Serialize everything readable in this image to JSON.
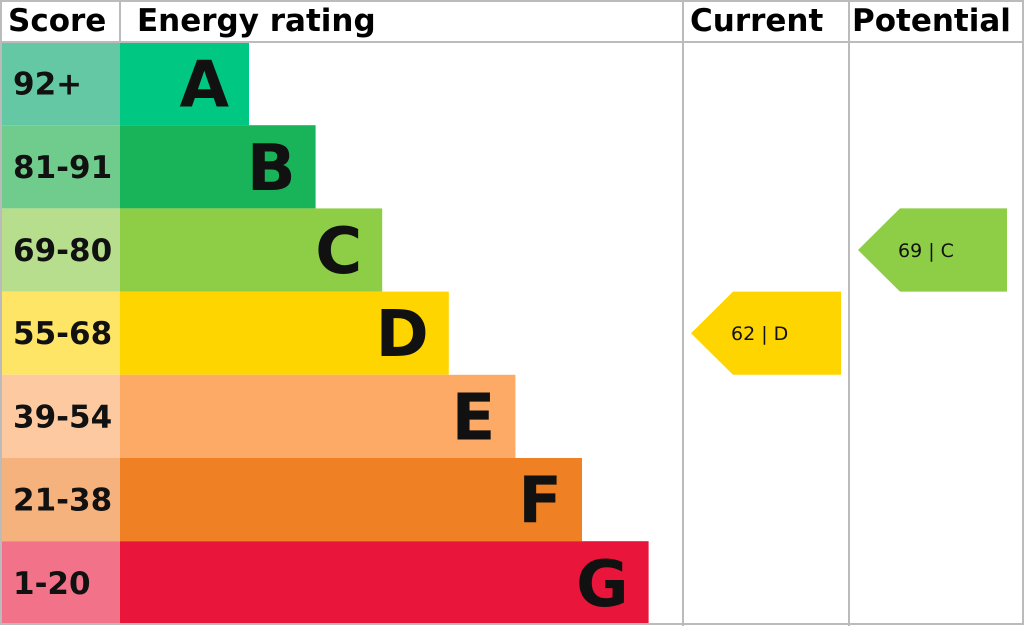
{
  "chart_data": {
    "type": "bar",
    "headers": {
      "score": "Score",
      "rating": "Energy rating",
      "current": "Current",
      "potential": "Potential"
    },
    "bands": [
      {
        "letter": "A",
        "range": "92+",
        "color": "#00c781",
        "light": "#64c8a4"
      },
      {
        "letter": "B",
        "range": "81-91",
        "color": "#19b459",
        "light": "#70cc8d"
      },
      {
        "letter": "C",
        "range": "69-80",
        "color": "#8dce46",
        "light": "#b6de8c"
      },
      {
        "letter": "D",
        "range": "55-68",
        "color": "#ffd500",
        "light": "#ffe566"
      },
      {
        "letter": "E",
        "range": "39-54",
        "color": "#fcaa65",
        "light": "#fdc9a0"
      },
      {
        "letter": "F",
        "range": "21-38",
        "color": "#ef8023",
        "light": "#f5b27d"
      },
      {
        "letter": "G",
        "range": "1-20",
        "color": "#e9153b",
        "light": "#f27389"
      }
    ],
    "current": {
      "value": 62,
      "band": "D",
      "label": "62 | D"
    },
    "potential": {
      "value": 69,
      "band": "C",
      "label": "69 | C"
    }
  }
}
